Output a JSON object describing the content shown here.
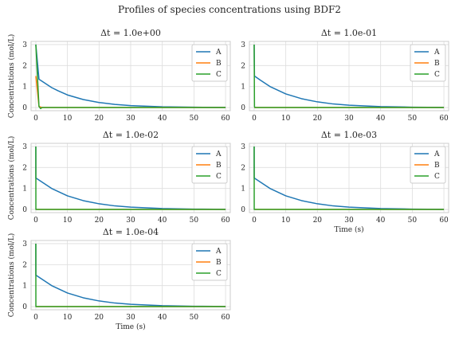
{
  "suptitle": "Profiles of species concentrations using BDF2",
  "colors": {
    "A": "#1f77b4",
    "B": "#ff7f0e",
    "C": "#2ca02c",
    "grid": "#dddddd",
    "frame": "#cccccc"
  },
  "chart_data": [
    {
      "type": "line",
      "title": "Δt = 1.0e+00",
      "xlabel": "",
      "ylabel": "Concentrations (mol/L)",
      "xlim": [
        -1.5,
        61.5
      ],
      "ylim": [
        -0.15,
        3.15
      ],
      "xticks": [
        0,
        10,
        20,
        30,
        40,
        50,
        60
      ],
      "yticks": [
        0,
        1,
        2,
        3
      ],
      "legend": "top-right",
      "grid": true,
      "series": [
        {
          "name": "A",
          "x": [
            0,
            1,
            2,
            3,
            5,
            7,
            10,
            15,
            20,
            25,
            30,
            40,
            50,
            60
          ],
          "y": [
            3.0,
            1.35,
            1.25,
            1.15,
            0.95,
            0.8,
            0.6,
            0.38,
            0.24,
            0.15,
            0.09,
            0.035,
            0.015,
            0.006
          ]
        },
        {
          "name": "B",
          "x": [
            0,
            0.5,
            1,
            2,
            60
          ],
          "y": [
            1.5,
            0.8,
            0.05,
            0.0,
            0.0
          ]
        },
        {
          "name": "C",
          "x": [
            0,
            1,
            1.5,
            2,
            3,
            60
          ],
          "y": [
            3.0,
            0.05,
            -0.05,
            0.0,
            0.0,
            0.0
          ]
        }
      ]
    },
    {
      "type": "line",
      "title": "Δt = 1.0e-01",
      "xlabel": "",
      "ylabel": "",
      "xlim": [
        -1.5,
        61.5
      ],
      "ylim": [
        -0.15,
        3.15
      ],
      "xticks": [
        0,
        10,
        20,
        30,
        40,
        50,
        60
      ],
      "yticks": [
        0,
        1,
        2,
        3
      ],
      "legend": "top-right",
      "grid": true,
      "series": [
        {
          "name": "A",
          "x": [
            0,
            0.1,
            2,
            5,
            10,
            15,
            20,
            25,
            30,
            40,
            50,
            60
          ],
          "y": [
            3.0,
            1.5,
            1.3,
            1.0,
            0.65,
            0.42,
            0.27,
            0.17,
            0.11,
            0.045,
            0.018,
            0.007
          ]
        },
        {
          "name": "B",
          "x": [
            0,
            0.1,
            0.2,
            60
          ],
          "y": [
            0.0,
            0.0,
            0.0,
            0.0
          ]
        },
        {
          "name": "C",
          "x": [
            0,
            0.1,
            0.2,
            60
          ],
          "y": [
            3.0,
            0.05,
            0.0,
            0.0
          ]
        }
      ]
    },
    {
      "type": "line",
      "title": "Δt = 1.0e-02",
      "xlabel": "",
      "ylabel": "Concentrations (mol/L)",
      "xlim": [
        -1.5,
        61.5
      ],
      "ylim": [
        -0.15,
        3.15
      ],
      "xticks": [
        0,
        10,
        20,
        30,
        40,
        50,
        60
      ],
      "yticks": [
        0,
        1,
        2,
        3
      ],
      "legend": "top-right",
      "grid": true,
      "series": [
        {
          "name": "A",
          "x": [
            0,
            0.01,
            2,
            5,
            10,
            15,
            20,
            25,
            30,
            40,
            50,
            60
          ],
          "y": [
            3.0,
            1.5,
            1.3,
            1.0,
            0.65,
            0.42,
            0.27,
            0.17,
            0.11,
            0.045,
            0.018,
            0.007
          ]
        },
        {
          "name": "B",
          "x": [
            0,
            0.01,
            60
          ],
          "y": [
            0.0,
            0.0,
            0.0
          ]
        },
        {
          "name": "C",
          "x": [
            0,
            0.02,
            60
          ],
          "y": [
            3.0,
            0.0,
            0.0
          ]
        }
      ]
    },
    {
      "type": "line",
      "title": "Δt = 1.0e-03",
      "xlabel": "Time (s)",
      "ylabel": "",
      "xlim": [
        -1.5,
        61.5
      ],
      "ylim": [
        -0.15,
        3.15
      ],
      "xticks": [
        0,
        10,
        20,
        30,
        40,
        50,
        60
      ],
      "yticks": [
        0,
        1,
        2,
        3
      ],
      "legend": "top-right",
      "grid": true,
      "series": [
        {
          "name": "A",
          "x": [
            0,
            0.01,
            2,
            5,
            10,
            15,
            20,
            25,
            30,
            40,
            50,
            60
          ],
          "y": [
            3.0,
            1.5,
            1.3,
            1.0,
            0.65,
            0.42,
            0.27,
            0.17,
            0.11,
            0.045,
            0.018,
            0.007
          ]
        },
        {
          "name": "B",
          "x": [
            0,
            0.01,
            60
          ],
          "y": [
            0.0,
            0.0,
            0.0
          ]
        },
        {
          "name": "C",
          "x": [
            0,
            0.02,
            60
          ],
          "y": [
            3.0,
            0.0,
            0.0
          ]
        }
      ]
    },
    {
      "type": "line",
      "title": "Δt = 1.0e-04",
      "xlabel": "Time (s)",
      "ylabel": "Concentrations (mol/L)",
      "xlim": [
        -1.5,
        61.5
      ],
      "ylim": [
        -0.15,
        3.15
      ],
      "xticks": [
        0,
        10,
        20,
        30,
        40,
        50,
        60
      ],
      "yticks": [
        0,
        1,
        2,
        3
      ],
      "legend": "top-right",
      "grid": true,
      "series": [
        {
          "name": "A",
          "x": [
            0,
            0.01,
            2,
            5,
            10,
            15,
            20,
            25,
            30,
            40,
            50,
            60
          ],
          "y": [
            3.0,
            1.5,
            1.3,
            1.0,
            0.65,
            0.42,
            0.27,
            0.17,
            0.11,
            0.045,
            0.018,
            0.007
          ]
        },
        {
          "name": "B",
          "x": [
            0,
            0.01,
            60
          ],
          "y": [
            0.0,
            0.0,
            0.0
          ]
        },
        {
          "name": "C",
          "x": [
            0,
            0.02,
            60
          ],
          "y": [
            3.0,
            0.0,
            0.0
          ]
        }
      ]
    }
  ]
}
